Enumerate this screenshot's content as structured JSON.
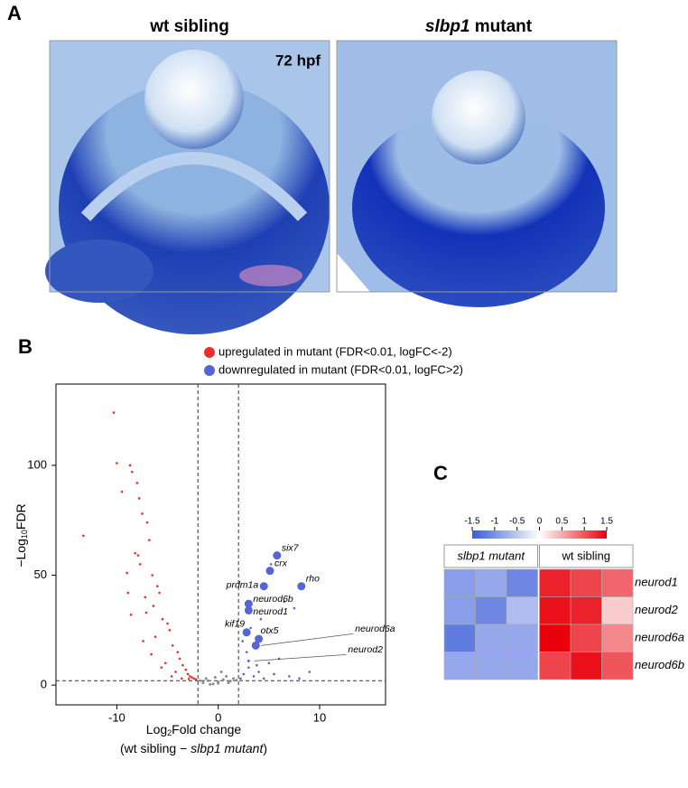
{
  "panel_a": {
    "label": "A",
    "left_title": "wt sibling",
    "right_title_italic": "slbp1",
    "right_title_rest": " mutant",
    "stage": "72 hpf"
  },
  "chart_data": [
    {
      "type": "scatter",
      "panel_label": "B",
      "x_label": {
        "prefix": "Log",
        "sub": "2",
        "suffix": "Fold change"
      },
      "x_label_line2": {
        "start": "(wt sibling − ",
        "italic": "slbp1 mutant",
        "end": ")"
      },
      "y_label": {
        "prefix": "−Log",
        "sub": "10",
        "suffix": "FDR"
      },
      "xlim": [
        -16,
        16.5
      ],
      "ylim": [
        -9,
        137
      ],
      "xticks": [
        -10,
        0,
        10
      ],
      "yticks": [
        0,
        50,
        100
      ],
      "vlines": [
        -2,
        2
      ],
      "hline": 2,
      "series": [
        {
          "name": "upregulated in mutant (FDR<0.01, logFC<-2)",
          "color": "#e8302a",
          "x": [
            -10.3,
            -10,
            -8.7,
            -8.5,
            -8,
            -7.8,
            -7.5,
            -9.5,
            -7,
            -6.8,
            -8.2,
            -7.9,
            -7.7,
            -6.5,
            -9,
            -13.3,
            -6,
            -5.8,
            -7.2,
            -6.4,
            -5.5,
            -8.6,
            -5,
            -4.8,
            -6.2,
            -4.5,
            -4,
            -7.4,
            -3.8,
            -5.2,
            -3.5,
            -6.6,
            -3.2,
            -4.2,
            -3,
            -2.8,
            -2.6,
            -2.4,
            -2.2,
            -5.6,
            -4.6,
            -3.6,
            -2.9,
            -7.1,
            -8.9
          ],
          "values": [
            124,
            101,
            100,
            97,
            92,
            85,
            78,
            88,
            74,
            66,
            60,
            59,
            55,
            50,
            51,
            68,
            45,
            42,
            40,
            36,
            30,
            32,
            28,
            25,
            22,
            18,
            15,
            20,
            12,
            10,
            9,
            14,
            7,
            6,
            5,
            4,
            3.5,
            3,
            2.6,
            8,
            4,
            3,
            2.8,
            33,
            42
          ]
        },
        {
          "name": "downregulated in mutant (FDR<0.01, logFC>2)",
          "color": "#5565d6",
          "x": [
            2.2,
            2.5,
            3,
            3.5,
            4,
            4.5,
            5,
            5.5,
            6,
            7,
            8,
            9,
            2.8,
            3.2,
            4.2,
            6.5,
            7.5,
            5.2,
            2.4,
            3.8
          ],
          "values": [
            3,
            5,
            8,
            4,
            6,
            3,
            10,
            5,
            12,
            4,
            3,
            6,
            15,
            26,
            30,
            38,
            35,
            55,
            20,
            9
          ]
        }
      ],
      "other_points": {
        "color": "#8a8a8a",
        "x": [
          -1.5,
          -1,
          -0.5,
          0,
          0.5,
          1,
          1.5,
          -1.8,
          1.8,
          -0.8,
          0.8,
          0,
          -1.2,
          1.2,
          0.3,
          -0.3
        ],
        "values": [
          1,
          2,
          0.5,
          1.5,
          2.5,
          1,
          3,
          2,
          2.2,
          0.3,
          4,
          0.8,
          3,
          1.8,
          6,
          3.5
        ]
      },
      "annotations": [
        {
          "text": "six7",
          "x": 5.8,
          "y": 59
        },
        {
          "text": "crx",
          "x": 5.1,
          "y": 52
        },
        {
          "text": "rho",
          "x": 8.2,
          "y": 45
        },
        {
          "text": "prdm1a",
          "x": 4.5,
          "y": 45
        },
        {
          "text": "neurod6b",
          "x": 3.0,
          "y": 37
        },
        {
          "text": "neurod1",
          "x": 3.0,
          "y": 34
        },
        {
          "text": "kif19",
          "x": 2.8,
          "y": 24
        },
        {
          "text": "otx5",
          "x": 4.0,
          "y": 21
        },
        {
          "text": "neurod6a",
          "x": 3.7,
          "y": 18
        },
        {
          "text": "neurod2",
          "x": 3.0,
          "y": 11
        }
      ]
    },
    {
      "type": "heatmap",
      "panel_label": "C",
      "zlim": [
        -1.5,
        1.5
      ],
      "colorbar_ticks": [
        -1.5,
        -1,
        -0.5,
        0,
        0.5,
        1,
        1.5
      ],
      "low_color": "#3a5bd9",
      "mid_color": "#ffffff",
      "high_color": "#e8000b",
      "column_groups": [
        {
          "label": "slbp1 mutant",
          "italic": true,
          "columns": 3
        },
        {
          "label": "wt sibling",
          "italic": false,
          "columns": 3
        }
      ],
      "rows": [
        "neurod1",
        "neurod2",
        "neurod6a",
        "neurod6b"
      ],
      "values": [
        [
          -0.9,
          -0.8,
          -1.1,
          1.3,
          1.1,
          0.9
        ],
        [
          -0.9,
          -1.1,
          -0.6,
          1.4,
          1.3,
          0.3
        ],
        [
          -1.2,
          -0.8,
          -0.8,
          1.5,
          1.1,
          0.7
        ],
        [
          -0.8,
          -0.8,
          -0.8,
          1.1,
          1.4,
          1.0
        ]
      ]
    }
  ]
}
